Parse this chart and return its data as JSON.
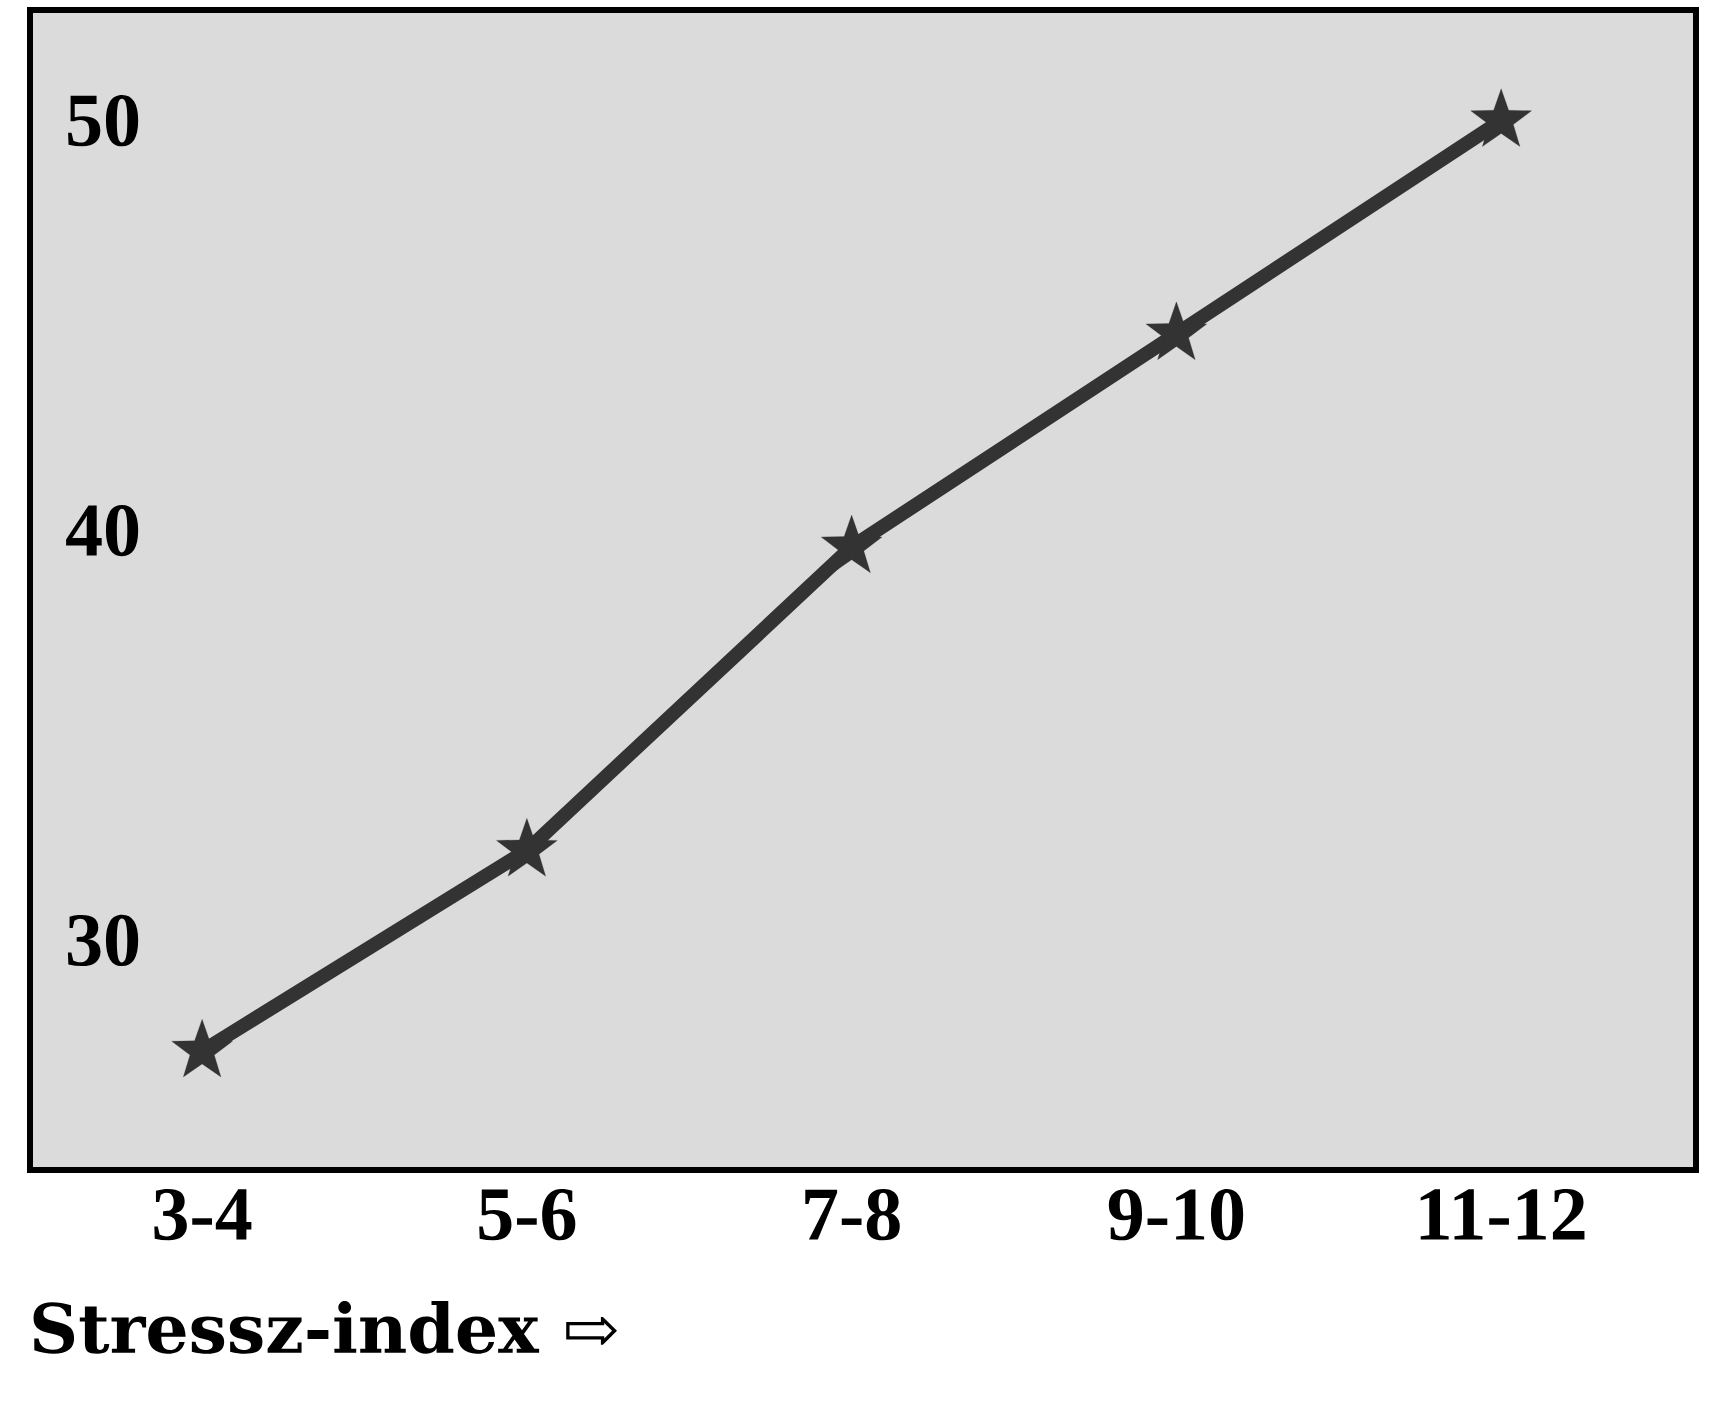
{
  "chart_data": {
    "type": "line",
    "xlabel": "Stressz-index ⇨",
    "categories": [
      "3-4",
      "5-6",
      "7-8",
      "9-10",
      "11-12"
    ],
    "series": [
      {
        "color": "#333333",
        "values": [
          27.3,
          32.2,
          39.6,
          44.8,
          50.0
        ]
      }
    ],
    "ylim": [
      24.4,
      52.7
    ],
    "yticks": [
      30,
      40,
      50
    ],
    "marker": "star",
    "line_style": "solid",
    "grid": false
  }
}
